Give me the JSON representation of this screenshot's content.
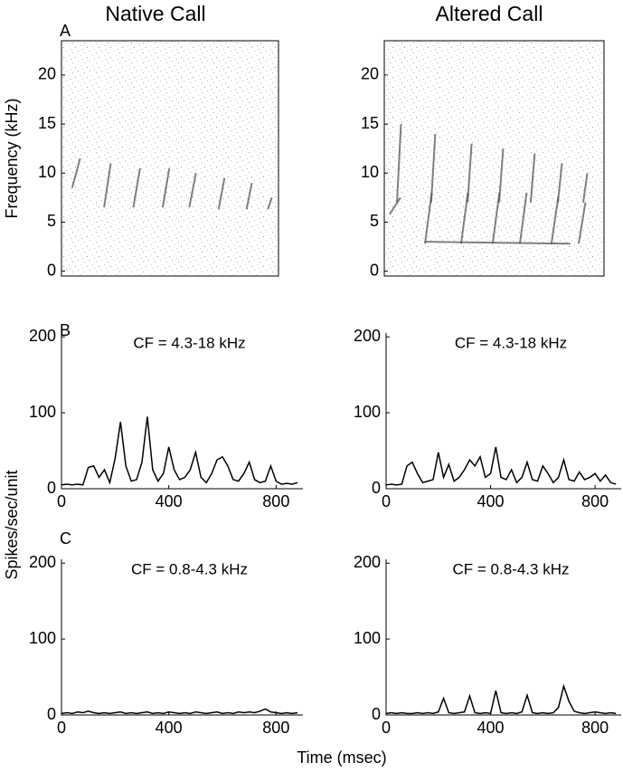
{
  "figure": {
    "columns": [
      "Native Call",
      "Altered Call"
    ],
    "panels": [
      "A",
      "B",
      "C"
    ],
    "ylabel": "Spikes/sec/unit",
    "xlabel": "Time (msec)"
  },
  "chart_data": [
    {
      "type": "spectrogram",
      "ylabel": "Frequency (kHz)",
      "xlim": [
        0,
        815
      ],
      "ylim": [
        -0.5,
        23.5
      ],
      "yticks": [
        0,
        5,
        10,
        15,
        20
      ],
      "color": "#555555",
      "chirps": [
        {
          "t": [
            40,
            70
          ],
          "f": [
            8.5,
            11.5
          ]
        },
        {
          "t": [
            160,
            185
          ],
          "f": [
            6.5,
            11
          ]
        },
        {
          "t": [
            270,
            295
          ],
          "f": [
            6.5,
            10.5
          ]
        },
        {
          "t": [
            380,
            405
          ],
          "f": [
            6.5,
            10.5
          ]
        },
        {
          "t": [
            480,
            505
          ],
          "f": [
            6.5,
            10
          ]
        },
        {
          "t": [
            590,
            612
          ],
          "f": [
            6.3,
            9.5
          ]
        },
        {
          "t": [
            695,
            715
          ],
          "f": [
            6.3,
            9
          ]
        },
        {
          "t": [
            775,
            790
          ],
          "f": [
            6.3,
            7.5
          ]
        }
      ]
    },
    {
      "type": "spectrogram",
      "xlim": [
        0,
        815
      ],
      "ylim": [
        -0.5,
        23.5
      ],
      "yticks": [
        0,
        5,
        10,
        15,
        20
      ],
      "color": "#555555",
      "chirps": [
        {
          "t": [
            20,
            60
          ],
          "f": [
            5.8,
            7.5
          ]
        },
        {
          "t": [
            47,
            62
          ],
          "f": [
            7,
            15
          ]
        },
        {
          "t": [
            174,
            189
          ],
          "f": [
            7,
            14
          ]
        },
        {
          "t": [
            309,
            324
          ],
          "f": [
            7,
            13
          ]
        },
        {
          "t": [
            426,
            441
          ],
          "f": [
            7,
            12.5
          ]
        },
        {
          "t": [
            543,
            558
          ],
          "f": [
            7,
            12
          ]
        },
        {
          "t": [
            644,
            659
          ],
          "f": [
            7,
            11
          ]
        },
        {
          "t": [
            738,
            753
          ],
          "f": [
            7,
            10
          ]
        },
        {
          "t": [
            151,
            176
          ],
          "f": [
            2.8,
            8
          ]
        },
        {
          "t": [
            285,
            310
          ],
          "f": [
            2.8,
            8
          ]
        },
        {
          "t": [
            402,
            427
          ],
          "f": [
            2.8,
            8
          ]
        },
        {
          "t": [
            503,
            528
          ],
          "f": [
            2.8,
            8
          ]
        },
        {
          "t": [
            620,
            645
          ],
          "f": [
            2.8,
            7.5
          ]
        },
        {
          "t": [
            721,
            746
          ],
          "f": [
            2.8,
            7
          ]
        },
        {
          "t": [
            151,
            690
          ],
          "f": [
            3,
            2.8
          ]
        }
      ]
    },
    {
      "type": "line",
      "annotation": "CF = 4.3-18 kHz",
      "xlim": [
        0,
        900
      ],
      "ylim": [
        0,
        205
      ],
      "xticks": [
        0,
        400,
        800
      ],
      "yticks": [
        0,
        100,
        200
      ],
      "color": "#000000",
      "x": [
        0,
        20,
        40,
        60,
        80,
        100,
        120,
        140,
        160,
        180,
        200,
        220,
        240,
        260,
        280,
        300,
        320,
        340,
        360,
        380,
        400,
        420,
        440,
        460,
        480,
        500,
        520,
        540,
        560,
        580,
        600,
        620,
        640,
        660,
        680,
        700,
        720,
        740,
        760,
        780,
        800,
        820,
        840,
        860,
        880
      ],
      "values": [
        5,
        6,
        5,
        6,
        5,
        28,
        30,
        15,
        25,
        8,
        40,
        88,
        30,
        10,
        12,
        35,
        95,
        25,
        10,
        20,
        55,
        25,
        12,
        15,
        25,
        48,
        15,
        8,
        20,
        38,
        42,
        30,
        12,
        10,
        20,
        35,
        12,
        8,
        10,
        30,
        10,
        6,
        7,
        6,
        8
      ]
    },
    {
      "type": "line",
      "annotation": "CF = 4.3-18 kHz",
      "xlim": [
        0,
        900
      ],
      "ylim": [
        0,
        205
      ],
      "xticks": [
        0,
        400,
        800
      ],
      "yticks": [
        0,
        100,
        200
      ],
      "color": "#000000",
      "x": [
        0,
        20,
        40,
        60,
        80,
        100,
        120,
        140,
        160,
        180,
        200,
        220,
        240,
        260,
        280,
        300,
        320,
        340,
        360,
        380,
        400,
        420,
        440,
        460,
        480,
        500,
        520,
        540,
        560,
        580,
        600,
        620,
        640,
        660,
        680,
        700,
        720,
        740,
        760,
        780,
        800,
        820,
        840,
        860,
        880
      ],
      "values": [
        5,
        6,
        5,
        6,
        30,
        35,
        20,
        8,
        10,
        12,
        48,
        15,
        32,
        10,
        15,
        25,
        38,
        30,
        42,
        15,
        20,
        55,
        15,
        12,
        25,
        8,
        15,
        35,
        12,
        10,
        30,
        20,
        8,
        15,
        38,
        12,
        10,
        22,
        12,
        15,
        20,
        10,
        18,
        8,
        6
      ]
    },
    {
      "type": "line",
      "annotation": "CF = 0.8-4.3 kHz",
      "xlim": [
        0,
        900
      ],
      "ylim": [
        0,
        205
      ],
      "xticks": [
        0,
        400,
        800
      ],
      "yticks": [
        0,
        100,
        200
      ],
      "color": "#000000",
      "x": [
        0,
        20,
        40,
        60,
        80,
        100,
        120,
        140,
        160,
        180,
        200,
        220,
        240,
        260,
        280,
        300,
        320,
        340,
        360,
        380,
        400,
        420,
        440,
        460,
        480,
        500,
        520,
        540,
        560,
        580,
        600,
        620,
        640,
        660,
        680,
        700,
        720,
        740,
        760,
        780,
        800,
        820,
        840,
        860,
        880
      ],
      "values": [
        2,
        3,
        2,
        4,
        3,
        5,
        3,
        2,
        3,
        2,
        3,
        4,
        2,
        3,
        2,
        3,
        4,
        2,
        3,
        2,
        4,
        3,
        2,
        3,
        2,
        4,
        3,
        2,
        3,
        4,
        2,
        3,
        2,
        4,
        3,
        4,
        3,
        5,
        8,
        4,
        3,
        2,
        3,
        2,
        3
      ]
    },
    {
      "type": "line",
      "annotation": "CF = 0.8-4.3 kHz",
      "xlim": [
        0,
        900
      ],
      "ylim": [
        0,
        205
      ],
      "xticks": [
        0,
        400,
        800
      ],
      "yticks": [
        0,
        100,
        200
      ],
      "color": "#000000",
      "x": [
        0,
        20,
        40,
        60,
        80,
        100,
        120,
        140,
        160,
        180,
        200,
        220,
        240,
        260,
        280,
        300,
        320,
        340,
        360,
        380,
        400,
        420,
        440,
        460,
        480,
        500,
        520,
        540,
        560,
        580,
        600,
        620,
        640,
        660,
        680,
        700,
        720,
        740,
        760,
        780,
        800,
        820,
        840,
        860,
        880
      ],
      "values": [
        2,
        3,
        2,
        3,
        2,
        2,
        3,
        2,
        3,
        2,
        4,
        22,
        3,
        2,
        3,
        4,
        25,
        3,
        2,
        3,
        2,
        32,
        3,
        2,
        3,
        2,
        4,
        26,
        3,
        2,
        3,
        2,
        3,
        10,
        38,
        18,
        5,
        3,
        2,
        3,
        4,
        3,
        2,
        3,
        2
      ]
    }
  ]
}
